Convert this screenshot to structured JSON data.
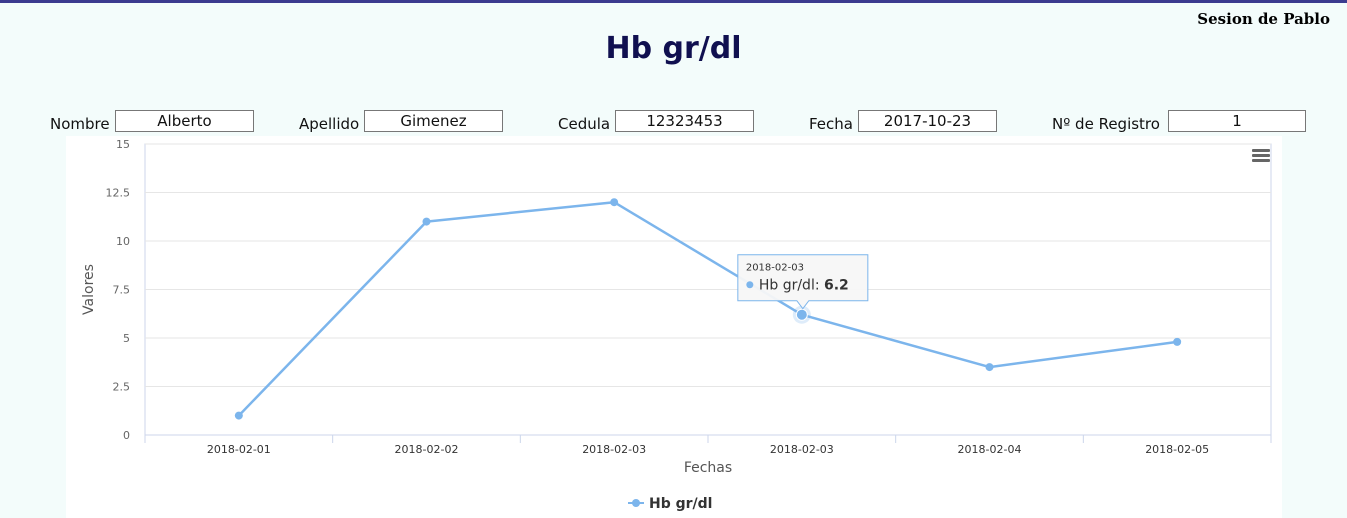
{
  "session": {
    "label": "Sesion de Pablo"
  },
  "page": {
    "title": "Hb gr/dl"
  },
  "fields": [
    {
      "label": "Nombre",
      "value": "Alberto"
    },
    {
      "label": "Apellido",
      "value": "Gimenez"
    },
    {
      "label": "Cedula",
      "value": "12323453"
    },
    {
      "label": "Fecha",
      "value": "2017-10-23"
    },
    {
      "label": "Nº de Registro",
      "value": "1"
    }
  ],
  "chart_menu": {
    "icon": "menu-icon"
  },
  "chart_data": {
    "type": "line",
    "categories": [
      "2018-02-01",
      "2018-02-02",
      "2018-02-03",
      "2018-02-03",
      "2018-02-04",
      "2018-02-05"
    ],
    "series": [
      {
        "name": "Hb gr/dl",
        "values": [
          1,
          11,
          12,
          6.2,
          3.5,
          4.8
        ],
        "color": "#7cb5ec"
      }
    ],
    "xlabel": "Fechas",
    "ylabel": "Valores",
    "ylim": [
      0,
      15
    ],
    "yticks": [
      "0",
      "2.5",
      "5",
      "7.5",
      "10",
      "12.5",
      "15"
    ],
    "grid": true,
    "legend": "bottom-center",
    "tooltip": {
      "category": "2018-02-03",
      "series": "Hb gr/dl",
      "value": "6.2",
      "point_index": 3
    }
  }
}
